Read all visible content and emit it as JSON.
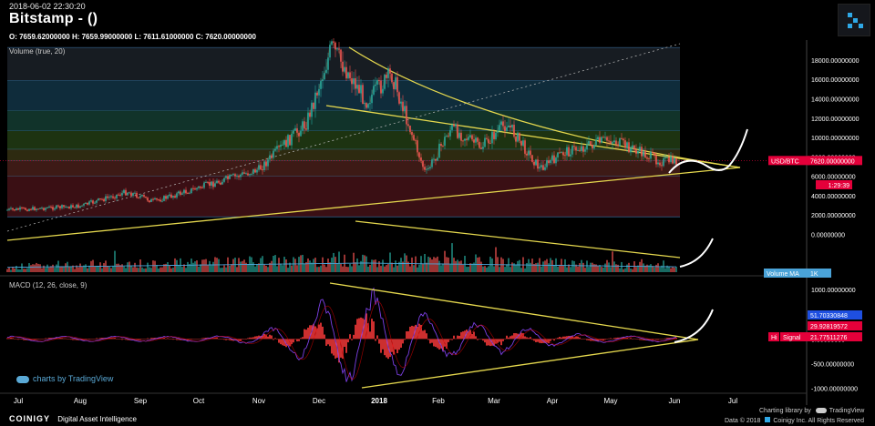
{
  "header": {
    "timestamp": "2018-06-02 22:30:20",
    "title": "Bitstamp -  ()",
    "ohlc": "O: 7659.62000000 H: 7659.99000000 L: 7611.61000000 C: 7620.00000000"
  },
  "panes": {
    "volume_label": "Volume (true, 20)",
    "macd_label": "MACD (12, 26, close, 9)"
  },
  "badges": {
    "pair": "USD/BTC",
    "price": "7620.00000000",
    "countdown": "1:29:39",
    "volume_ma": "Volume MA",
    "volume_ma_value": "1K",
    "macd_value": "51.70330848",
    "signal_value": "29.92819572",
    "hist_label": "Hi",
    "signal_label": "Signal",
    "hist_value": "21.77511276"
  },
  "footer": {
    "tv_brand": "charts by TradingView",
    "charting_lib": "Charting library by",
    "charting_lib_name": "TradingView",
    "coinigy": "COINIGY",
    "coinigy_tagline": "Digital Asset Intelligence",
    "copyright": "Data © 2018",
    "copyright_rest": "Coinigy Inc. All Rights Reserved"
  },
  "colors": {
    "bull": "#26a69a",
    "bear": "#ef5350",
    "trendline": "#e5d84e",
    "price_badge": "#e4003a",
    "macd_line": "#7b3fe4",
    "signal_line": "#ff3b3b",
    "volume_ma_line": "#4aa3d8"
  },
  "chart_data": [
    {
      "type": "line",
      "title": "Bitstamp -  ()",
      "x": [
        "Jul",
        "Aug",
        "Sep",
        "Oct",
        "Nov",
        "Dec",
        "2018",
        "Feb",
        "Mar",
        "Apr",
        "May",
        "Jun",
        "Jul"
      ],
      "price_path": [
        [
          "Jul",
          2500
        ],
        [
          "Aug",
          2900
        ],
        [
          "Sep",
          4400
        ],
        [
          "Sep",
          3400
        ],
        [
          "Oct",
          4800
        ],
        [
          "Nov",
          6700
        ],
        [
          "Dec",
          11500
        ],
        [
          "Dec",
          19300
        ],
        [
          "2018",
          13800
        ],
        [
          "2018",
          16500
        ],
        [
          "Feb",
          6200
        ],
        [
          "Feb",
          11000
        ],
        [
          "Mar",
          9000
        ],
        [
          "Mar",
          11500
        ],
        [
          "Apr",
          6800
        ],
        [
          "Apr",
          8500
        ],
        [
          "May",
          9800
        ],
        [
          "Jun",
          7500
        ],
        [
          "Jun",
          7620
        ]
      ],
      "y_ticks": [
        0,
        2000,
        4000,
        6000,
        8000,
        10000,
        12000,
        14000,
        16000,
        18000
      ],
      "y_tick_labels": [
        "0.00000000",
        "2000.00000000",
        "4000.00000000",
        "6000.00000000",
        "8000.00000000",
        "10000.00000000",
        "12000.00000000",
        "14000.00000000",
        "16000.00000000",
        "18000.00000000"
      ],
      "ylim": [
        -1000,
        19500
      ],
      "last_price": 7620,
      "fib_levels": [
        1800,
        6000,
        7620,
        8800,
        10700,
        12800,
        15900,
        19300
      ]
    },
    {
      "type": "bar",
      "title": "Volume (true, 20)",
      "series": [
        {
          "name": "Volume MA",
          "values": [
            1000
          ]
        }
      ]
    },
    {
      "type": "line",
      "title": "MACD (12, 26, close, 9)",
      "y_ticks": [
        -1000,
        -500,
        0,
        500,
        1000
      ],
      "y_tick_labels": [
        "-1000.00000000",
        "-500.00000000",
        "0.00000000",
        "500.00000000",
        "1000.00000000"
      ],
      "ylim": [
        -1100,
        1150
      ],
      "series": [
        {
          "name": "MACD",
          "values": [
            51.70330848
          ]
        },
        {
          "name": "Signal",
          "values": [
            29.92819572
          ]
        },
        {
          "name": "Histogram",
          "values": [
            21.77511276
          ]
        }
      ]
    }
  ]
}
